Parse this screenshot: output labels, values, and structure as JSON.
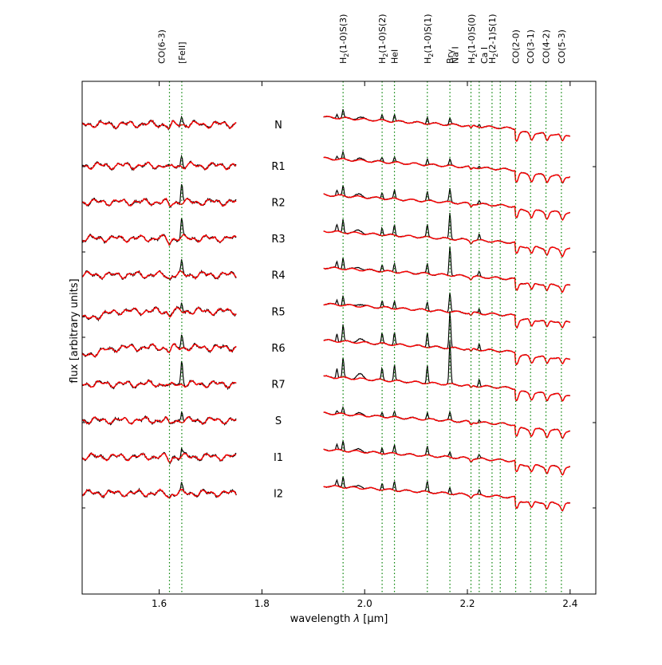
{
  "chart_data": {
    "type": "line",
    "xlabel_main": "wavelength ",
    "xlabel_lambda": "λ",
    "xlabel_unit": " [μm]",
    "ylabel": "flux [arbitrary units]",
    "xlim": [
      1.45,
      2.45
    ],
    "x_ticks": [
      1.6,
      1.8,
      2.0,
      2.2,
      2.4
    ],
    "x_tick_labels": [
      "1.6",
      "1.8",
      "2.0",
      "2.2",
      "2.4"
    ],
    "grid": false,
    "colors": {
      "observed": "#000000",
      "model": "#ff0000",
      "lines": "#008000"
    },
    "segments": [
      [
        1.45,
        1.75
      ],
      [
        1.92,
        2.4
      ]
    ],
    "series": [
      {
        "name": "N",
        "offset": 14.2,
        "brg": 0.2,
        "h2": 0.25,
        "fe": 0.22
      },
      {
        "name": "R1",
        "offset": 12.95,
        "brg": 0.18,
        "h2": 0.2,
        "fe": 0.3
      },
      {
        "name": "R2",
        "offset": 11.85,
        "brg": 0.4,
        "h2": 0.3,
        "fe": 0.6
      },
      {
        "name": "R3",
        "offset": 10.75,
        "brg": 0.8,
        "h2": 0.4,
        "fe": 0.55
      },
      {
        "name": "R4",
        "offset": 9.65,
        "brg": 0.9,
        "h2": 0.35,
        "fe": 0.35
      },
      {
        "name": "R5",
        "offset": 8.55,
        "brg": 0.6,
        "h2": 0.3,
        "fe": 0.25
      },
      {
        "name": "R6",
        "offset": 7.45,
        "brg": 1.1,
        "h2": 0.5,
        "fe": 0.4
      },
      {
        "name": "R7",
        "offset": 6.35,
        "brg": 1.3,
        "h2": 0.6,
        "fe": 0.7
      },
      {
        "name": "S",
        "offset": 5.25,
        "brg": 0.25,
        "h2": 0.2,
        "fe": 0.3
      },
      {
        "name": "I1",
        "offset": 4.15,
        "brg": 0.15,
        "h2": 0.3,
        "fe": 0.22
      },
      {
        "name": "I2",
        "offset": 3.05,
        "brg": 0.2,
        "h2": 0.35,
        "fe": 0.2
      }
    ],
    "spectral_lines": [
      {
        "x": 1.62,
        "label": "CO(6-3)",
        "stack": 1
      },
      {
        "x": 1.644,
        "label": "[FeII]",
        "stack": 0
      },
      {
        "x": 1.958,
        "label": "H",
        "sub": "2",
        "rest": "(1-0)S(3)",
        "stack": 0
      },
      {
        "x": 2.034,
        "label": "H",
        "sub": "2",
        "rest": "(1-0)S(2)",
        "stack": 0
      },
      {
        "x": 2.058,
        "label": "HeI",
        "stack": 0
      },
      {
        "x": 2.122,
        "label": "H",
        "sub": "2",
        "rest": "(1-0)S(1)",
        "stack": 0
      },
      {
        "x": 2.166,
        "label": "Br",
        "greek": "γ",
        "stack": 0
      },
      {
        "x": 2.207,
        "label": "Na I",
        "stack": 2
      },
      {
        "x": 2.223,
        "label": "H",
        "sub": "2",
        "rest": "(1-0)S(0)",
        "stack": 1
      },
      {
        "x": 2.248,
        "label": "H",
        "sub": "2",
        "rest": "(2-1)S(1)",
        "stack": 0
      },
      {
        "x": 2.264,
        "label": "Ca I",
        "stack": 2
      },
      {
        "x": 2.294,
        "label": "CO(2-0)",
        "stack": 0
      },
      {
        "x": 2.323,
        "label": "CO(3-1)",
        "stack": 0
      },
      {
        "x": 2.353,
        "label": "CO(4-2)",
        "stack": 0
      },
      {
        "x": 2.383,
        "label": "CO(5-3)",
        "stack": 0
      }
    ]
  }
}
